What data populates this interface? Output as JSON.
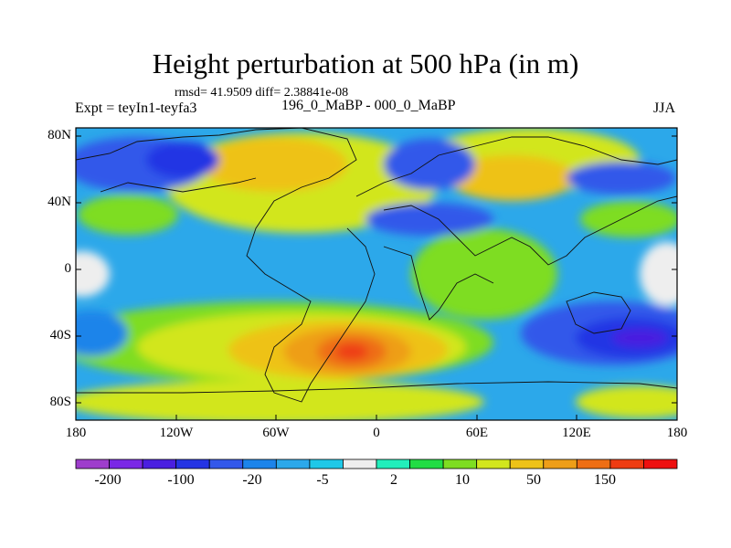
{
  "title": "Height perturbation at 500 hPa (in m)",
  "stats": "rmsd= 41.9509 diff= 2.38841e-08",
  "left_subtitle": "Expt = teyIn1-teyfa3",
  "center_subtitle": "196_0_MaBP - 000_0_MaBP",
  "right_subtitle": "JJA",
  "x_ticks": [
    "180",
    "120W",
    "60W",
    "0",
    "60E",
    "120E",
    "180"
  ],
  "y_ticks": [
    "80N",
    "40N",
    "0",
    "40S",
    "80S"
  ],
  "colorbar": {
    "labels": [
      "-200",
      "-100",
      "-20",
      "-5",
      "2",
      "10",
      "50",
      "150"
    ],
    "colors": [
      "#9e3dcc",
      "#7a28e6",
      "#4a1fe0",
      "#2434e4",
      "#3358ea",
      "#1c84ea",
      "#2ca8ea",
      "#1fc8e8",
      "#eeeeee",
      "#22eebb",
      "#22dd44",
      "#7edd22",
      "#d2e61e",
      "#eec218",
      "#ee9e18",
      "#ee6e14",
      "#ee3c12",
      "#ee1010"
    ]
  },
  "chart_data": {
    "type": "heatmap",
    "title": "Height perturbation at 500 hPa (in m)",
    "xlim": [
      -180,
      180
    ],
    "ylim": [
      -90,
      90
    ],
    "color_levels": [
      -200,
      -100,
      -20,
      -5,
      2,
      10,
      50,
      150
    ],
    "regions_approx": [
      {
        "lon": -12,
        "lat": -50,
        "value": 150
      },
      {
        "lon": -40,
        "lat": -50,
        "value": 60
      },
      {
        "lon": -90,
        "lat": -50,
        "value": 30
      },
      {
        "lon": 20,
        "lat": -35,
        "value": 40
      },
      {
        "lon": 140,
        "lat": -45,
        "value": -100
      },
      {
        "lon": 150,
        "lat": 10,
        "value": -20
      },
      {
        "lon": 45,
        "lat": 30,
        "value": -40
      },
      {
        "lon": -150,
        "lat": 55,
        "value": -40
      },
      {
        "lon": -30,
        "lat": 45,
        "value": 25
      },
      {
        "lon": 80,
        "lat": 60,
        "value": 25
      },
      {
        "lon": -150,
        "lat": -15,
        "value": -10
      },
      {
        "lon": -100,
        "lat": 30,
        "value": -8
      },
      {
        "lon": 130,
        "lat": 25,
        "value": -15
      },
      {
        "lon": 160,
        "lat": 45,
        "value": 12
      },
      {
        "lon": -100,
        "lat": -75,
        "value": 20
      }
    ]
  }
}
